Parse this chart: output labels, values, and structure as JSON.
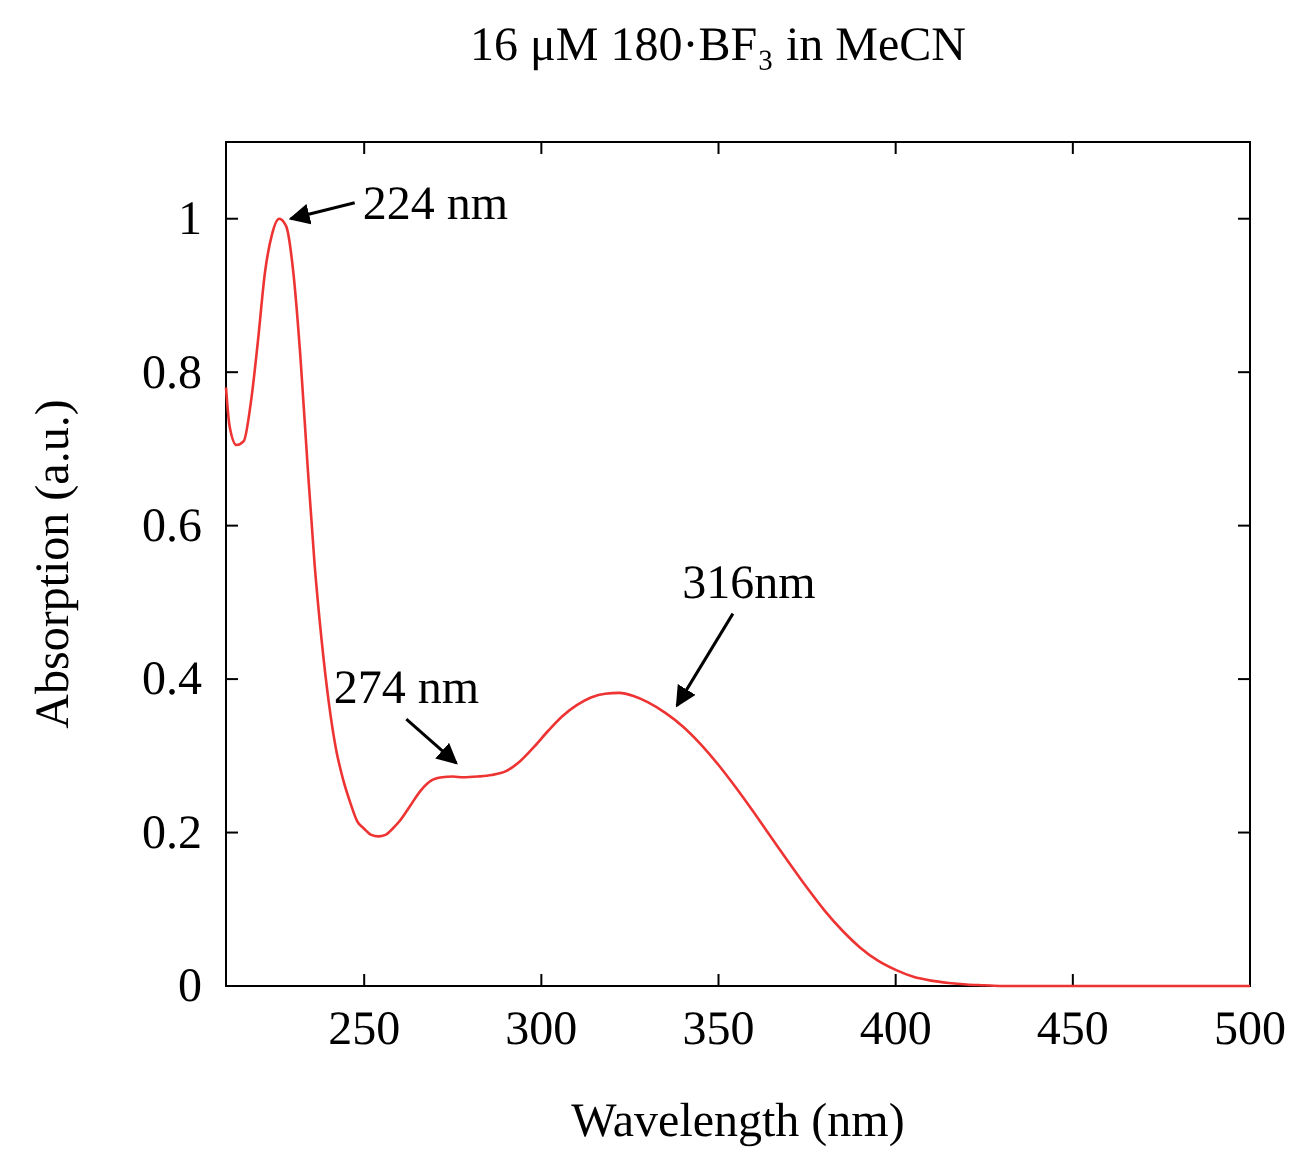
{
  "chart_data": {
    "type": "line",
    "title": "16 μM 180·BF₃ in MeCN",
    "xlabel": "Wavelength (nm)",
    "ylabel": "Absorption (a.u.)",
    "x": [
      211,
      212,
      214,
      216,
      218,
      220,
      222,
      224,
      226,
      228,
      230,
      232,
      234,
      236,
      238,
      240,
      242,
      244,
      246,
      248,
      250,
      252,
      254,
      256,
      258,
      260,
      263,
      266,
      269,
      272,
      275,
      278,
      282,
      286,
      290,
      294,
      298,
      302,
      306,
      310,
      314,
      318,
      322,
      326,
      330,
      335,
      340,
      345,
      350,
      355,
      360,
      365,
      370,
      375,
      380,
      385,
      390,
      395,
      400,
      405,
      410,
      415,
      420,
      425,
      430,
      440,
      460,
      480,
      500
    ],
    "series": [
      {
        "color": "#ee3333",
        "values": [
          0.78,
          0.73,
          0.705,
          0.71,
          0.76,
          0.84,
          0.93,
          0.98,
          1.0,
          0.99,
          0.93,
          0.82,
          0.68,
          0.55,
          0.45,
          0.37,
          0.31,
          0.27,
          0.24,
          0.215,
          0.205,
          0.197,
          0.195,
          0.197,
          0.205,
          0.215,
          0.235,
          0.255,
          0.268,
          0.272,
          0.273,
          0.272,
          0.273,
          0.275,
          0.28,
          0.293,
          0.312,
          0.333,
          0.352,
          0.366,
          0.376,
          0.381,
          0.382,
          0.378,
          0.37,
          0.356,
          0.338,
          0.315,
          0.288,
          0.258,
          0.226,
          0.193,
          0.16,
          0.128,
          0.098,
          0.072,
          0.05,
          0.033,
          0.021,
          0.012,
          0.007,
          0.004,
          0.002,
          0.001,
          0,
          0,
          0,
          0,
          0
        ]
      }
    ],
    "xlim": [
      211,
      500
    ],
    "ylim": [
      0,
      1.1
    ],
    "xticks": [
      250,
      300,
      350,
      400,
      450,
      500
    ],
    "yticks": [
      0,
      0.2,
      0.4,
      0.6,
      0.8,
      1
    ],
    "line_style": "solid",
    "marker": "none",
    "grid": false,
    "annotations": [
      {
        "text": "224 nm",
        "x": 227,
        "y": 1.0
      },
      {
        "text": "274 nm",
        "x": 276,
        "y": 0.28
      },
      {
        "text": "316nm",
        "x": 336,
        "y": 0.355
      }
    ]
  }
}
